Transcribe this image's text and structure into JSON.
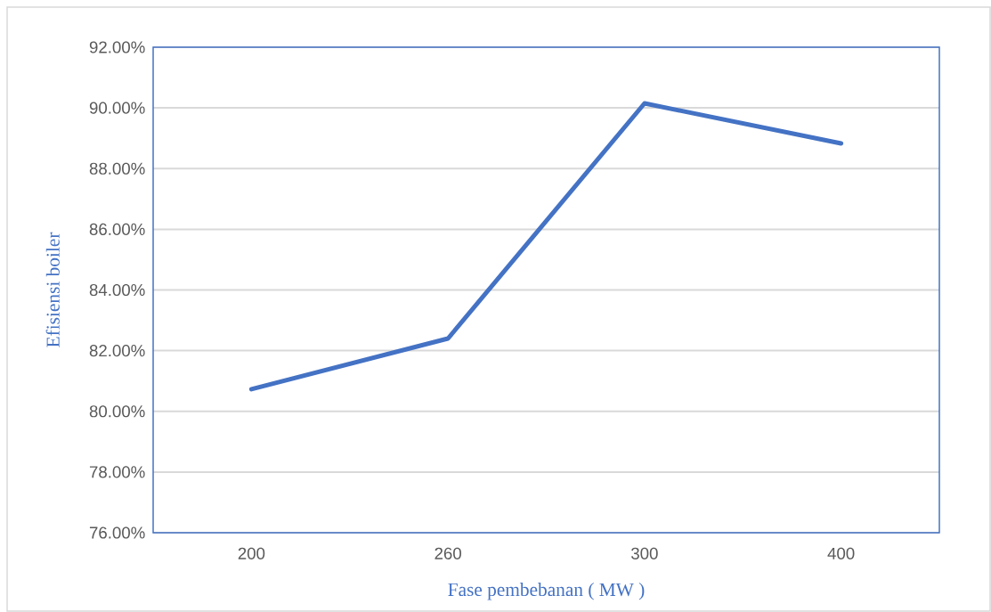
{
  "chart_data": {
    "type": "line",
    "xlabel": "Fase pembebanan ( MW )",
    "ylabel": "Efisiensi boiler",
    "categories": [
      "200",
      "260",
      "300",
      "400"
    ],
    "series": [
      {
        "color": "#4472c4",
        "values": [
          80.73,
          82.4,
          90.15,
          88.83
        ]
      }
    ],
    "ylim": [
      76,
      92
    ],
    "yticks": [
      {
        "value": 76,
        "label": "76.00%"
      },
      {
        "value": 78,
        "label": "78.00%"
      },
      {
        "value": 80,
        "label": "80.00%"
      },
      {
        "value": 82,
        "label": "82.00%"
      },
      {
        "value": 84,
        "label": "84.00%"
      },
      {
        "value": 86,
        "label": "86.00%"
      },
      {
        "value": 88,
        "label": "88.00%"
      },
      {
        "value": 90,
        "label": "90.00%"
      },
      {
        "value": 92,
        "label": "92.00%"
      }
    ],
    "grid": "y",
    "marker": "none",
    "line_style": "solid"
  }
}
